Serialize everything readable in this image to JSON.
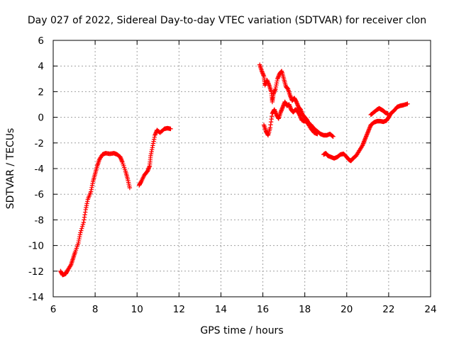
{
  "chart_data": {
    "type": "scatter",
    "title": "Day 027 of 2022, Sidereal Day-to-day VTEC variation (SDTVAR) for receiver clon",
    "xlabel": "GPS time / hours",
    "ylabel": "SDTVAR / TECUs",
    "xlim": [
      6,
      24
    ],
    "ylim": [
      -14,
      6
    ],
    "xticks": [
      "6",
      "8",
      "10",
      "12",
      "14",
      "16",
      "18",
      "20",
      "22",
      "24"
    ],
    "yticks": [
      "6",
      "4",
      "2",
      "0",
      "-2",
      "-4",
      "-6",
      "-8",
      "-10",
      "-12",
      "-14"
    ],
    "grid": true,
    "marker": "+",
    "series": [
      {
        "name": "SDTVAR",
        "color": "#ff0000",
        "segments": [
          [
            [
              6.35,
              -12.0
            ],
            [
              6.45,
              -12.3
            ],
            [
              6.6,
              -12.2
            ],
            [
              6.7,
              -11.9
            ],
            [
              6.85,
              -11.5
            ],
            [
              6.95,
              -11.0
            ],
            [
              7.05,
              -10.5
            ],
            [
              7.2,
              -9.8
            ],
            [
              7.3,
              -9.0
            ],
            [
              7.45,
              -8.2
            ],
            [
              7.55,
              -7.2
            ],
            [
              7.65,
              -6.4
            ],
            [
              7.8,
              -5.8
            ],
            [
              7.9,
              -5.0
            ],
            [
              8.0,
              -4.4
            ],
            [
              8.1,
              -3.8
            ],
            [
              8.2,
              -3.3
            ],
            [
              8.35,
              -2.9
            ],
            [
              8.5,
              -2.8
            ],
            [
              8.7,
              -2.85
            ],
            [
              8.9,
              -2.8
            ],
            [
              9.05,
              -2.9
            ],
            [
              9.2,
              -3.1
            ],
            [
              9.3,
              -3.5
            ],
            [
              9.45,
              -4.2
            ],
            [
              9.55,
              -4.8
            ],
            [
              9.65,
              -5.5
            ]
          ],
          [
            [
              10.1,
              -5.3
            ],
            [
              10.2,
              -5.0
            ],
            [
              10.35,
              -4.5
            ],
            [
              10.5,
              -4.2
            ],
            [
              10.6,
              -3.8
            ],
            [
              10.65,
              -3.0
            ],
            [
              10.75,
              -2.2
            ],
            [
              10.85,
              -1.4
            ],
            [
              10.95,
              -1.0
            ],
            [
              11.1,
              -1.2
            ],
            [
              11.3,
              -0.9
            ],
            [
              11.45,
              -0.85
            ],
            [
              11.6,
              -0.9
            ]
          ],
          [
            [
              15.85,
              4.1
            ],
            [
              15.95,
              3.6
            ],
            [
              16.05,
              3.2
            ],
            [
              16.1,
              2.5
            ],
            [
              16.2,
              2.9
            ],
            [
              16.3,
              2.5
            ],
            [
              16.4,
              2.0
            ],
            [
              16.45,
              1.2
            ],
            [
              16.5,
              1.8
            ],
            [
              16.6,
              2.2
            ],
            [
              16.7,
              3.0
            ],
            [
              16.8,
              3.4
            ],
            [
              16.9,
              3.6
            ],
            [
              17.0,
              3.0
            ],
            [
              17.1,
              2.4
            ],
            [
              17.2,
              2.2
            ],
            [
              17.3,
              1.7
            ],
            [
              17.4,
              1.3
            ],
            [
              17.5,
              1.5
            ],
            [
              17.6,
              1.2
            ],
            [
              17.7,
              0.8
            ],
            [
              17.8,
              0.6
            ],
            [
              17.9,
              0.2
            ],
            [
              18.0,
              0.0
            ],
            [
              18.1,
              -0.2
            ],
            [
              18.2,
              -0.5
            ],
            [
              18.3,
              -0.6
            ],
            [
              18.45,
              -0.9
            ],
            [
              18.6,
              -1.1
            ],
            [
              18.75,
              -1.3
            ],
            [
              18.9,
              -1.4
            ],
            [
              19.05,
              -1.4
            ],
            [
              19.2,
              -1.3
            ],
            [
              19.35,
              -1.5
            ]
          ],
          [
            [
              16.05,
              -0.6
            ],
            [
              16.15,
              -1.1
            ],
            [
              16.25,
              -1.4
            ],
            [
              16.35,
              -0.8
            ],
            [
              16.45,
              0.3
            ],
            [
              16.55,
              0.6
            ],
            [
              16.65,
              0.2
            ],
            [
              16.75,
              -0.1
            ],
            [
              16.85,
              0.4
            ],
            [
              16.95,
              0.8
            ],
            [
              17.05,
              1.2
            ],
            [
              17.15,
              0.9
            ],
            [
              17.25,
              1.0
            ],
            [
              17.35,
              0.6
            ],
            [
              17.45,
              0.4
            ],
            [
              17.55,
              0.6
            ],
            [
              17.65,
              0.5
            ],
            [
              17.75,
              0.2
            ],
            [
              17.85,
              -0.2
            ],
            [
              17.95,
              -0.3
            ],
            [
              18.05,
              -0.3
            ],
            [
              18.15,
              -0.5
            ],
            [
              18.3,
              -0.9
            ],
            [
              18.45,
              -1.2
            ],
            [
              18.6,
              -1.3
            ]
          ],
          [
            [
              18.9,
              -2.9
            ],
            [
              19.0,
              -2.8
            ],
            [
              19.1,
              -3.0
            ],
            [
              19.25,
              -3.1
            ],
            [
              19.4,
              -3.2
            ],
            [
              19.55,
              -3.1
            ],
            [
              19.7,
              -2.9
            ],
            [
              19.85,
              -2.85
            ],
            [
              20.0,
              -3.1
            ],
            [
              20.1,
              -3.3
            ],
            [
              20.2,
              -3.4
            ],
            [
              20.3,
              -3.2
            ],
            [
              20.45,
              -3.0
            ],
            [
              20.6,
              -2.6
            ],
            [
              20.75,
              -2.2
            ],
            [
              20.85,
              -1.8
            ],
            [
              20.95,
              -1.4
            ],
            [
              21.05,
              -1.0
            ],
            [
              21.15,
              -0.6
            ],
            [
              21.3,
              -0.4
            ],
            [
              21.45,
              -0.3
            ],
            [
              21.6,
              -0.3
            ],
            [
              21.75,
              -0.35
            ],
            [
              21.9,
              -0.25
            ],
            [
              22.0,
              0.0
            ],
            [
              22.1,
              0.3
            ],
            [
              22.25,
              0.5
            ],
            [
              22.4,
              0.8
            ],
            [
              22.55,
              0.9
            ],
            [
              22.7,
              0.95
            ],
            [
              22.9,
              1.05
            ]
          ],
          [
            [
              21.15,
              0.2
            ],
            [
              21.3,
              0.4
            ],
            [
              21.45,
              0.6
            ],
            [
              21.55,
              0.7
            ],
            [
              21.65,
              0.6
            ],
            [
              21.75,
              0.5
            ],
            [
              21.85,
              0.35
            ],
            [
              21.95,
              0.3
            ]
          ]
        ]
      }
    ]
  }
}
